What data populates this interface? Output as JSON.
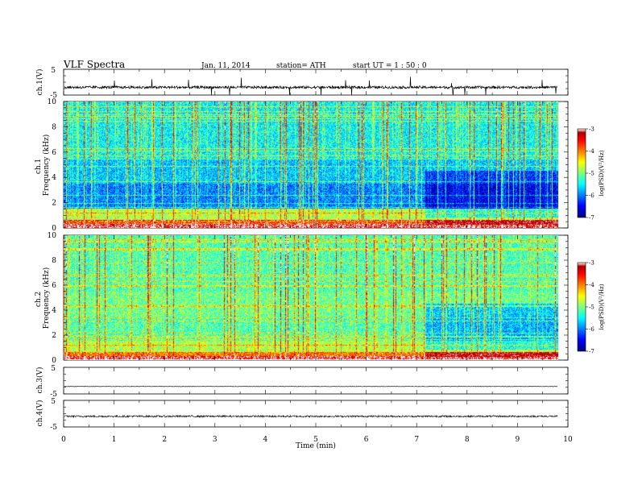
{
  "header": {
    "title": "VLF  Spectra",
    "date": "Jan. 11, 2014",
    "station": "station= ATH",
    "start": "start  UT  =   1 : 50 : 0"
  },
  "chart_data": [
    {
      "type": "line",
      "id": "ch1-waveform",
      "ylabel": "ch.1(V)",
      "ylim": [
        -5,
        5
      ],
      "yticks": [
        "5",
        "-5"
      ],
      "baseline": -2.0,
      "noise": 0.5
    },
    {
      "type": "heatmap",
      "id": "ch1-spectrogram",
      "ylabel": "ch.1\nFrequency (kHz)",
      "ylim": [
        0,
        10
      ],
      "yticks": [
        "0",
        "2",
        "4",
        "6",
        "8",
        "10"
      ],
      "xlim": [
        0,
        9.8
      ],
      "colorbar": {
        "label": "log(PSD)(V²/Hz)",
        "range": [
          -7,
          -3
        ],
        "ticks": [
          "-3",
          "-4",
          "-5",
          "-6",
          "-7"
        ]
      }
    },
    {
      "type": "heatmap",
      "id": "ch2-spectrogram",
      "ylabel": "ch.2\nFrequency (kHz)",
      "ylim": [
        0,
        10
      ],
      "yticks": [
        "0",
        "2",
        "4",
        "6",
        "8",
        "10"
      ],
      "xlim": [
        0,
        9.8
      ],
      "colorbar": {
        "label": "log(PSD)(V²/Hz)",
        "range": [
          -7,
          -3
        ],
        "ticks": [
          "-3",
          "-4",
          "-5",
          "-6",
          "-7"
        ]
      }
    },
    {
      "type": "line",
      "id": "ch3-waveform",
      "ylabel": "ch.3(V)",
      "ylim": [
        -5,
        5
      ],
      "yticks": [
        "5",
        "-5"
      ],
      "baseline": -2.2,
      "noise": 0.08
    },
    {
      "type": "line",
      "id": "ch4-waveform",
      "ylabel": "ch.4(V)",
      "ylim": [
        -5,
        5
      ],
      "yticks": [
        "5",
        "-5"
      ],
      "baseline": -1.0,
      "noise": 0.35
    }
  ],
  "xaxis": {
    "label": "Time  (min)",
    "range": [
      0,
      10
    ],
    "ticks": [
      "0",
      "1",
      "2",
      "3",
      "4",
      "5",
      "6",
      "7",
      "8",
      "9",
      "10"
    ]
  }
}
